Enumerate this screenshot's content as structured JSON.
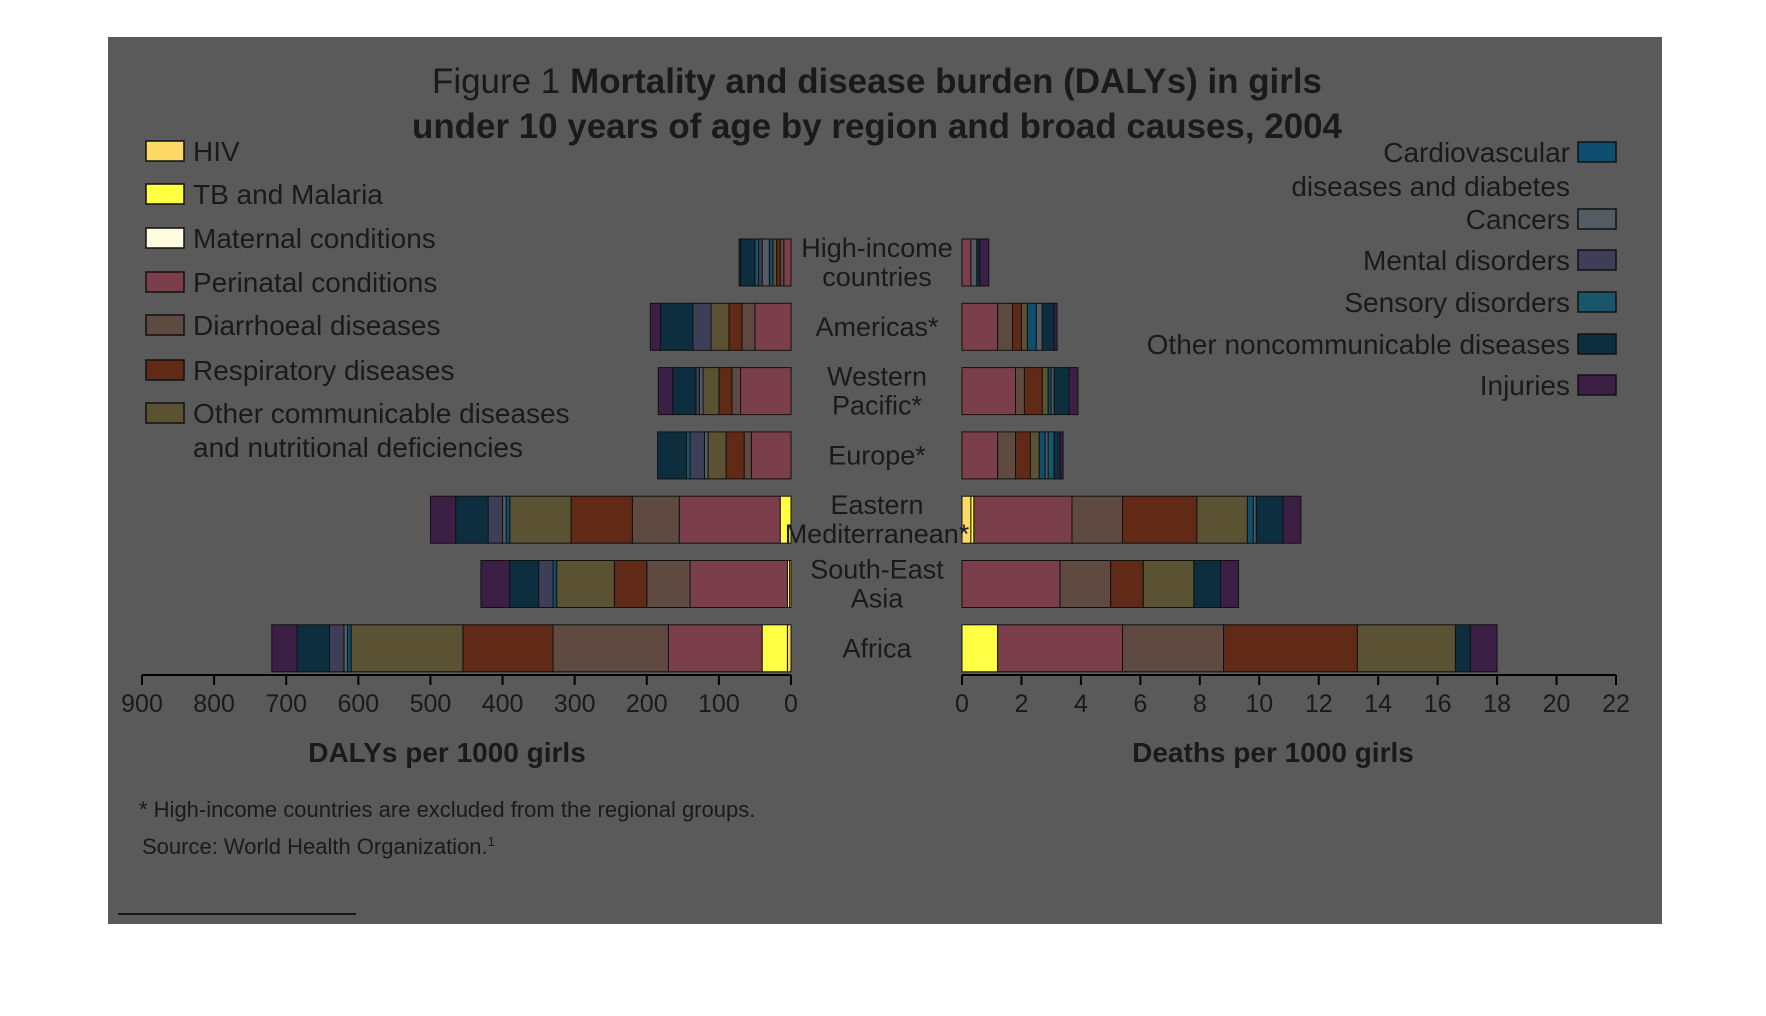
{
  "figure": {
    "label": "Figure 1",
    "title_line1": "Mortality and disease burden (DALYs) in girls",
    "title_line2": "under 10 years of age by region and broad causes, 2004"
  },
  "footnote": "* High-income countries are excluded from the regional groups.",
  "source_prefix": "Source: World Health Organization.",
  "source_ref": "1",
  "colors": {
    "panel": "#5b5a5b",
    "page": "#ffffff",
    "text": "#1a1a1a",
    "text_on_light": "#444444",
    "axis": "#000000",
    "HIV": "#ffd966",
    "TB and Malaria": "#ffff44",
    "Maternal conditions": "#fffde0",
    "Perinatal conditions": "#7a3f4a",
    "Diarrhoeal diseases": "#5e4a41",
    "Respiratory diseases": "#602a16",
    "Other communicable diseases and nutritional deficiencies": "#5a5232",
    "Cardiovascular diseases and diabetes": "#0e4f70",
    "Cancers": "#525c62",
    "Mental disorders": "#3c3f57",
    "Sensory disorders": "#19566c",
    "Other noncommunicable diseases": "#0d2e3f",
    "Injuries": "#3b1f45"
  },
  "chart_data": [
    {
      "type": "bar",
      "orientation": "horizontal",
      "stacked": true,
      "xlabel": "DALYs per 1000 girls",
      "xlim": [
        0,
        900
      ],
      "x_reversed": true,
      "xticks": [
        "900",
        "800",
        "700",
        "600",
        "500",
        "400",
        "300",
        "200",
        "100",
        "0"
      ],
      "categories": [
        "High-income countries",
        "Americas*",
        "Western Pacific*",
        "Europe*",
        "Eastern Mediterranean*",
        "South-East Asia",
        "Africa"
      ],
      "category_labels": [
        [
          "High-income",
          "countries"
        ],
        [
          "Americas*"
        ],
        [
          "Western",
          "Pacific*"
        ],
        [
          "Europe*"
        ],
        [
          "Eastern",
          "Mediterranean*"
        ],
        [
          "South-East",
          "Asia"
        ],
        [
          "Africa"
        ]
      ],
      "series": [
        {
          "name": "HIV",
          "values": [
            0,
            0,
            0,
            0,
            0,
            2,
            5
          ]
        },
        {
          "name": "TB and Malaria",
          "values": [
            0,
            0,
            0,
            0,
            15,
            3,
            35
          ]
        },
        {
          "name": "Maternal conditions",
          "values": [
            0,
            0,
            0,
            0,
            0,
            0,
            0
          ]
        },
        {
          "name": "Perinatal conditions",
          "values": [
            10,
            50,
            70,
            55,
            140,
            135,
            130
          ]
        },
        {
          "name": "Diarrhoeal diseases",
          "values": [
            5,
            18,
            12,
            10,
            65,
            60,
            160
          ]
        },
        {
          "name": "Respiratory diseases",
          "values": [
            5,
            18,
            18,
            25,
            85,
            45,
            125
          ]
        },
        {
          "name": "Other communicable diseases and nutritional deficiencies",
          "values": [
            5,
            25,
            22,
            25,
            85,
            80,
            155
          ]
        },
        {
          "name": "Cardiovascular diseases and diabetes",
          "values": [
            5,
            0,
            0,
            0,
            5,
            5,
            5
          ]
        },
        {
          "name": "Cancers",
          "values": [
            10,
            0,
            5,
            5,
            5,
            0,
            5
          ]
        },
        {
          "name": "Mental disorders",
          "values": [
            5,
            25,
            5,
            20,
            20,
            20,
            20
          ]
        },
        {
          "name": "Sensory disorders",
          "values": [
            5,
            0,
            0,
            5,
            0,
            0,
            0
          ]
        },
        {
          "name": "Other noncommunicable diseases",
          "values": [
            20,
            45,
            32,
            40,
            45,
            40,
            45
          ]
        },
        {
          "name": "Injuries",
          "values": [
            2,
            14,
            20,
            0,
            35,
            40,
            35
          ]
        }
      ]
    },
    {
      "type": "bar",
      "orientation": "horizontal",
      "stacked": true,
      "xlabel": "Deaths per 1000 girls",
      "xlim": [
        0,
        22
      ],
      "xticks": [
        "0",
        "2",
        "4",
        "6",
        "8",
        "10",
        "12",
        "14",
        "16",
        "18",
        "20",
        "22"
      ],
      "categories": [
        "High-income countries",
        "Americas*",
        "Western Pacific*",
        "Europe*",
        "Eastern Mediterranean*",
        "South-East Asia",
        "Africa"
      ],
      "series": [
        {
          "name": "HIV",
          "values": [
            0,
            0,
            0,
            0,
            0.3,
            0,
            0
          ]
        },
        {
          "name": "TB and Malaria",
          "values": [
            0,
            0,
            0,
            0,
            0.1,
            0,
            1.2
          ]
        },
        {
          "name": "Maternal conditions",
          "values": [
            0,
            0,
            0,
            0,
            0,
            0,
            0
          ]
        },
        {
          "name": "Perinatal conditions",
          "values": [
            0.3,
            1.2,
            1.8,
            1.2,
            3.3,
            3.3,
            4.2
          ]
        },
        {
          "name": "Diarrhoeal diseases",
          "values": [
            0,
            0.5,
            0.3,
            0.6,
            1.7,
            1.7,
            3.4
          ]
        },
        {
          "name": "Respiratory diseases",
          "values": [
            0,
            0.3,
            0.6,
            0.5,
            2.5,
            1.1,
            4.5
          ]
        },
        {
          "name": "Other communicable diseases and nutritional deficiencies",
          "values": [
            0,
            0.2,
            0.2,
            0.3,
            1.7,
            1.7,
            3.3
          ]
        },
        {
          "name": "Cardiovascular diseases and diabetes",
          "values": [
            0,
            0.3,
            0.1,
            0.2,
            0.2,
            0,
            0
          ]
        },
        {
          "name": "Cancers",
          "values": [
            0.2,
            0.2,
            0.1,
            0.1,
            0.1,
            0,
            0
          ]
        },
        {
          "name": "Mental disorders",
          "values": [
            0,
            0,
            0,
            0,
            0,
            0,
            0
          ]
        },
        {
          "name": "Sensory disorders",
          "values": [
            0,
            0,
            0,
            0.2,
            0,
            0,
            0
          ]
        },
        {
          "name": "Other noncommunicable diseases",
          "values": [
            0.1,
            0.4,
            0.5,
            0.2,
            0.9,
            0.9,
            0.5
          ]
        },
        {
          "name": "Injuries",
          "values": [
            0.3,
            0.1,
            0.3,
            0.1,
            0.6,
            0.6,
            0.9
          ]
        }
      ]
    }
  ],
  "legend_left": [
    {
      "key": "HIV",
      "lines": [
        "HIV"
      ]
    },
    {
      "key": "TB and Malaria",
      "lines": [
        "TB and Malaria"
      ]
    },
    {
      "key": "Maternal conditions",
      "lines": [
        "Maternal conditions"
      ]
    },
    {
      "key": "Perinatal conditions",
      "lines": [
        "Perinatal conditions"
      ]
    },
    {
      "key": "Diarrhoeal diseases",
      "lines": [
        "Diarrhoeal diseases"
      ]
    },
    {
      "key": "Respiratory diseases",
      "lines": [
        "Respiratory diseases"
      ]
    },
    {
      "key": "Other communicable diseases and nutritional deficiencies",
      "lines": [
        "Other communicable diseases",
        "and nutritional deficiencies"
      ]
    }
  ],
  "legend_right": [
    {
      "key": "Cardiovascular diseases and diabetes",
      "lines": [
        "Cardiovascular",
        "diseases and diabetes"
      ]
    },
    {
      "key": "Cancers",
      "lines": [
        "Cancers"
      ]
    },
    {
      "key": "Mental disorders",
      "lines": [
        "Mental disorders"
      ]
    },
    {
      "key": "Sensory disorders",
      "lines": [
        "Sensory disorders"
      ]
    },
    {
      "key": "Other noncommunicable diseases",
      "lines": [
        "Other noncommunicable diseases"
      ]
    },
    {
      "key": "Injuries",
      "lines": [
        "Injuries"
      ]
    }
  ]
}
